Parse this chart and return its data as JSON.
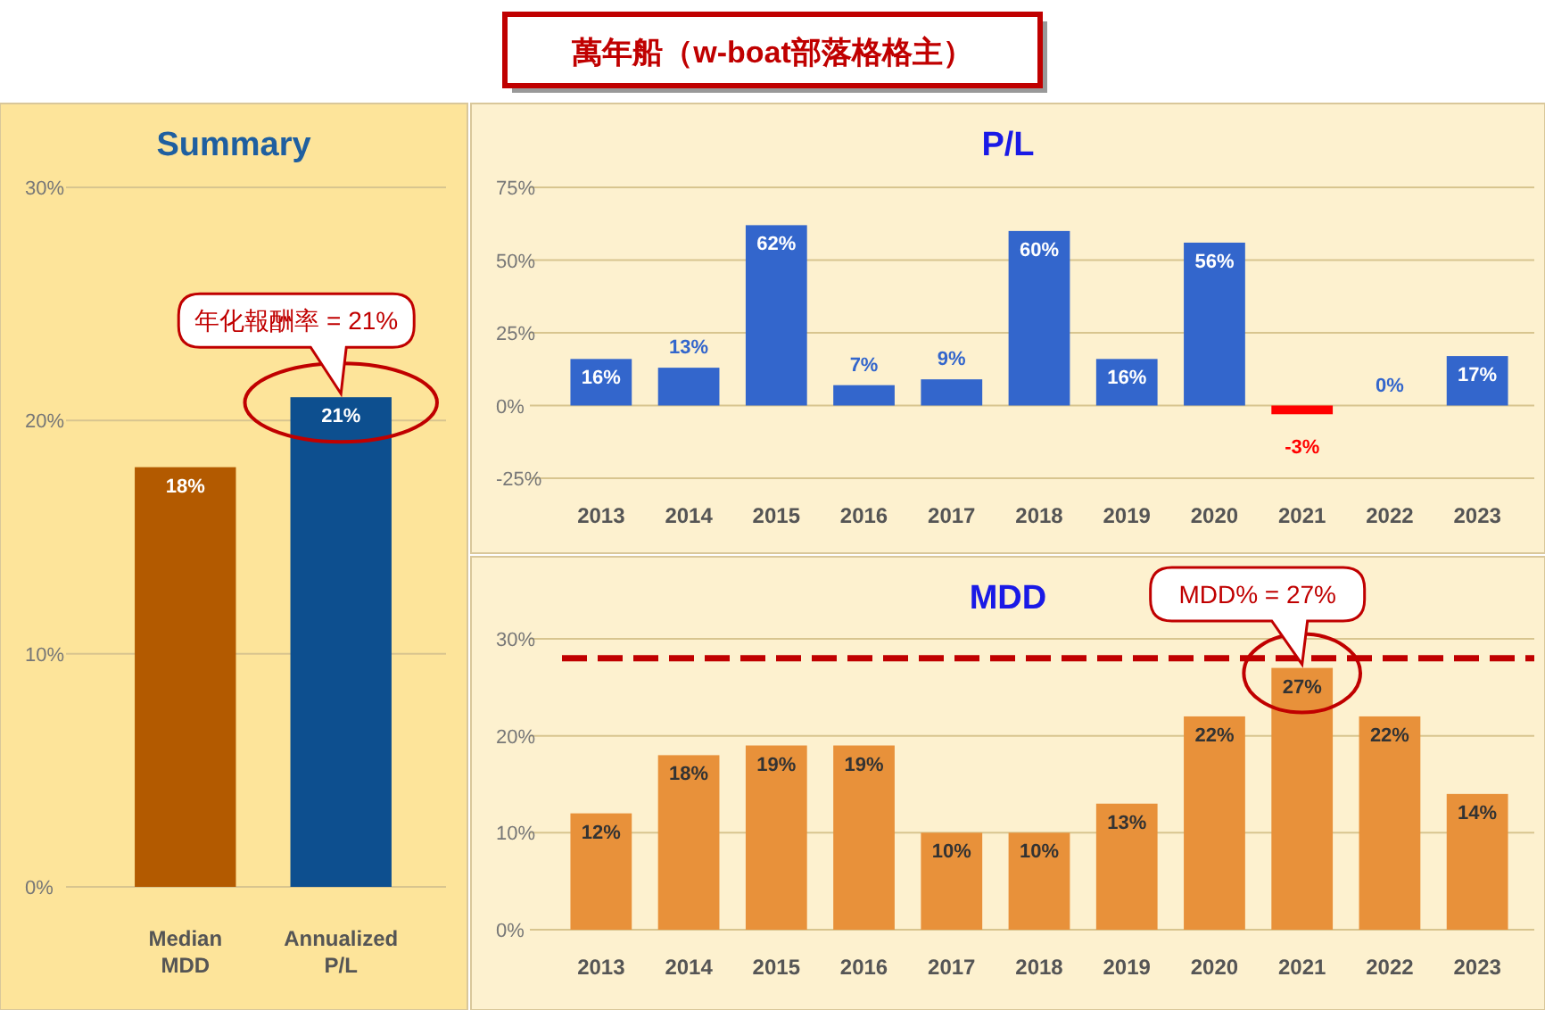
{
  "chart_data": [
    {
      "type": "bar",
      "title": "Summary",
      "categories": [
        "Median MDD",
        "Annualized P/L"
      ],
      "series": [
        {
          "values": [
            18,
            21
          ],
          "colors": [
            "#b35a00",
            "#0d4f8f"
          ],
          "value_labels": [
            "18%",
            "21%"
          ]
        }
      ],
      "ylim": [
        0,
        30
      ],
      "yticks": [
        {
          "value": 0,
          "label": "0%"
        },
        {
          "value": 10,
          "label": "10%"
        },
        {
          "value": 20,
          "label": "20%"
        },
        {
          "value": 30,
          "label": "30%"
        }
      ],
      "grid": "y",
      "annotations": [
        "萬年船（w-boat部落格格主）",
        {
          "text": "年化報酬率 = 21%",
          "x": "Annualized P/L",
          "y": 21
        }
      ]
    },
    {
      "type": "bar",
      "title": "P/L",
      "categories": [
        "2013",
        "2014",
        "2015",
        "2016",
        "2017",
        "2018",
        "2019",
        "2020",
        "2021",
        "2022",
        "2023"
      ],
      "series": [
        {
          "values": [
            16,
            13,
            62,
            7,
            9,
            60,
            16,
            56,
            -3,
            0,
            17
          ],
          "colors": [
            "#3366cc",
            "#3366cc",
            "#3366cc",
            "#3366cc",
            "#3366cc",
            "#3366cc",
            "#3366cc",
            "#3366cc",
            "#ff0000",
            "#3366cc",
            "#3366cc"
          ],
          "value_labels": [
            "16%",
            "13%",
            "62%",
            "7%",
            "9%",
            "60%",
            "16%",
            "56%",
            "-3%",
            "0%",
            "17%"
          ]
        }
      ],
      "ylim": [
        -25,
        75
      ],
      "yticks": [
        {
          "value": -25,
          "label": "-25%"
        },
        {
          "value": 0,
          "label": "0%"
        },
        {
          "value": 25,
          "label": "25%"
        },
        {
          "value": 50,
          "label": "50%"
        },
        {
          "value": 75,
          "label": "75%"
        }
      ],
      "grid": "y"
    },
    {
      "type": "bar",
      "title": "MDD",
      "categories": [
        "2013",
        "2014",
        "2015",
        "2016",
        "2017",
        "2018",
        "2019",
        "2020",
        "2021",
        "2022",
        "2023"
      ],
      "series": [
        {
          "color": "#e8913a",
          "values": [
            12,
            18,
            19,
            19,
            10,
            10,
            13,
            22,
            27,
            22,
            14
          ],
          "value_labels": [
            "12%",
            "18%",
            "19%",
            "19%",
            "10%",
            "10%",
            "13%",
            "22%",
            "27%",
            "22%",
            "14%"
          ]
        }
      ],
      "ylim": [
        0,
        30
      ],
      "yticks": [
        {
          "value": 0,
          "label": "0%"
        },
        {
          "value": 10,
          "label": "10%"
        },
        {
          "value": 20,
          "label": "20%"
        },
        {
          "value": 30,
          "label": "30%"
        }
      ],
      "grid": "y",
      "ref_lines": [
        {
          "axis": "y",
          "value": 28,
          "color": "#c00000",
          "line_style": "dashed"
        }
      ],
      "annotations": [
        {
          "text": "MDD% = 27%",
          "x": "2021",
          "y": 27
        }
      ]
    }
  ]
}
